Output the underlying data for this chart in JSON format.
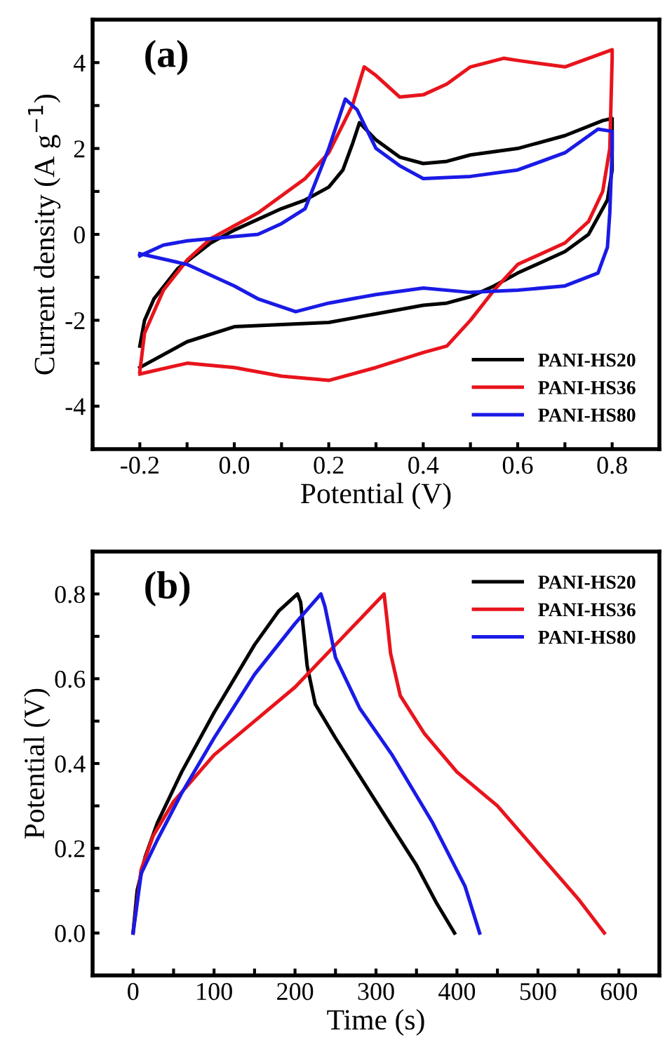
{
  "chart_data": [
    {
      "type": "line",
      "xlabel": "Potential (V)",
      "ylabel": "Current density (A g$^{−1}$)",
      "annotations": [
        "(a)"
      ],
      "xlim": [
        -0.3,
        0.9
      ],
      "ylim": [
        -5,
        5
      ],
      "xticks": [
        -0.2,
        {
          "value": 0,
          "label": "0.0"
        },
        0.2,
        0.4,
        0.6,
        0.8,
        {
          "value": -0.1,
          "label": null
        },
        {
          "value": 0.1,
          "label": null
        },
        {
          "value": 0.3,
          "label": null
        },
        {
          "value": 0.5,
          "label": null
        },
        {
          "value": 0.7,
          "label": null
        }
      ],
      "yticks": [
        -4,
        -2,
        0,
        2,
        4,
        {
          "value": -3,
          "label": null
        },
        {
          "value": -1,
          "label": null
        },
        {
          "value": 1,
          "label": null
        },
        {
          "value": 3,
          "label": null
        }
      ],
      "legend": "bottom right",
      "grid": false,
      "line_style": "solid",
      "marker": "none",
      "series": [
        {
          "name": "PANI-HS20",
          "color": "#000000",
          "x": [
            -0.2,
            -0.19,
            -0.17,
            -0.12,
            -0.05,
            0.0,
            0.1,
            0.15,
            0.2,
            0.23,
            0.25,
            0.265,
            0.3,
            0.35,
            0.4,
            0.45,
            0.5,
            0.6,
            0.7,
            0.78,
            0.8,
            0.8,
            0.8,
            0.79,
            0.75,
            0.7,
            0.6,
            0.55,
            0.5,
            0.45,
            0.4,
            0.3,
            0.2,
            0.1,
            0.0,
            -0.1,
            -0.2
          ],
          "values": [
            -2.6,
            -2.0,
            -1.5,
            -0.8,
            -0.2,
            0.1,
            0.6,
            0.8,
            1.1,
            1.5,
            2.1,
            2.6,
            2.2,
            1.8,
            1.65,
            1.7,
            1.85,
            2.0,
            2.3,
            2.65,
            2.7,
            2.6,
            1.5,
            0.8,
            0.0,
            -0.4,
            -0.9,
            -1.2,
            -1.45,
            -1.6,
            -1.65,
            -1.85,
            -2.05,
            -2.1,
            -2.15,
            -2.5,
            -3.1
          ]
        },
        {
          "name": "PANI-HS36",
          "color": "#e8141c",
          "x": [
            -0.2,
            -0.19,
            -0.15,
            -0.1,
            -0.05,
            0.0,
            0.05,
            0.1,
            0.15,
            0.2,
            0.25,
            0.275,
            0.3,
            0.35,
            0.4,
            0.45,
            0.5,
            0.57,
            0.6,
            0.7,
            0.75,
            0.8,
            0.8,
            0.795,
            0.78,
            0.75,
            0.7,
            0.6,
            0.55,
            0.5,
            0.45,
            0.4,
            0.3,
            0.2,
            0.1,
            0.0,
            -0.1,
            -0.2
          ],
          "values": [
            -3.2,
            -2.3,
            -1.3,
            -0.6,
            -0.1,
            0.2,
            0.5,
            0.9,
            1.3,
            1.9,
            3.0,
            3.9,
            3.7,
            3.2,
            3.25,
            3.5,
            3.9,
            4.1,
            4.05,
            3.9,
            4.1,
            4.3,
            4.1,
            2.0,
            1.0,
            0.3,
            -0.2,
            -0.7,
            -1.3,
            -2.0,
            -2.6,
            -2.75,
            -3.1,
            -3.4,
            -3.3,
            -3.1,
            -3.0,
            -3.25
          ]
        },
        {
          "name": "PANI-HS80",
          "color": "#1a1ae6",
          "x": [
            -0.2,
            -0.15,
            -0.1,
            0.0,
            0.05,
            0.1,
            0.15,
            0.2,
            0.235,
            0.26,
            0.3,
            0.35,
            0.4,
            0.5,
            0.6,
            0.7,
            0.77,
            0.8,
            0.8,
            0.795,
            0.79,
            0.77,
            0.7,
            0.6,
            0.5,
            0.4,
            0.3,
            0.2,
            0.13,
            0.05,
            0.0,
            -0.1,
            -0.2
          ],
          "values": [
            -0.5,
            -0.25,
            -0.15,
            -0.05,
            0.0,
            0.25,
            0.6,
            2.0,
            3.15,
            2.9,
            2.0,
            1.6,
            1.3,
            1.35,
            1.5,
            1.9,
            2.45,
            2.4,
            2.0,
            0.5,
            -0.3,
            -0.9,
            -1.2,
            -1.3,
            -1.35,
            -1.25,
            -1.4,
            -1.6,
            -1.8,
            -1.5,
            -1.2,
            -0.7,
            -0.45
          ]
        }
      ]
    },
    {
      "type": "line",
      "xlabel": "Time (s)",
      "ylabel": "Potential (V)",
      "annotations": [
        "(b)"
      ],
      "xlim": [
        -50,
        650
      ],
      "ylim": [
        -0.1,
        0.9
      ],
      "xticks": [
        0,
        100,
        200,
        300,
        400,
        500,
        600,
        {
          "value": 50,
          "label": null
        },
        {
          "value": 150,
          "label": null
        },
        {
          "value": 250,
          "label": null
        },
        {
          "value": 350,
          "label": null
        },
        {
          "value": 450,
          "label": null
        },
        {
          "value": 550,
          "label": null
        }
      ],
      "yticks": [
        {
          "value": 0.0,
          "label": "0.0"
        },
        0.2,
        0.4,
        0.6,
        0.8,
        {
          "value": 0.1,
          "label": null
        },
        {
          "value": 0.3,
          "label": null
        },
        {
          "value": 0.5,
          "label": null
        },
        {
          "value": 0.7,
          "label": null
        }
      ],
      "legend": "top right",
      "grid": false,
      "line_style": "solid",
      "marker": "none",
      "series": [
        {
          "name": "PANI-HS20",
          "color": "#000000",
          "x": [
            0,
            5,
            15,
            30,
            60,
            100,
            150,
            180,
            203,
            207,
            215,
            225,
            250,
            300,
            350,
            375,
            397
          ],
          "values": [
            0,
            0.1,
            0.18,
            0.26,
            0.38,
            0.52,
            0.68,
            0.76,
            0.8,
            0.78,
            0.63,
            0.54,
            0.46,
            0.31,
            0.16,
            0.07,
            0
          ]
        },
        {
          "name": "PANI-HS36",
          "color": "#e8141c",
          "x": [
            0,
            10,
            25,
            50,
            100,
            150,
            200,
            250,
            300,
            310,
            313,
            318,
            330,
            360,
            400,
            450,
            500,
            550,
            582
          ],
          "values": [
            0,
            0.15,
            0.23,
            0.31,
            0.42,
            0.5,
            0.58,
            0.68,
            0.78,
            0.8,
            0.75,
            0.66,
            0.56,
            0.47,
            0.38,
            0.3,
            0.19,
            0.08,
            0
          ]
        },
        {
          "name": "PANI-HS80",
          "color": "#1a1ae6",
          "x": [
            0,
            10,
            30,
            60,
            100,
            150,
            200,
            232,
            237,
            250,
            280,
            320,
            370,
            410,
            428
          ],
          "values": [
            0,
            0.14,
            0.22,
            0.33,
            0.46,
            0.61,
            0.73,
            0.8,
            0.77,
            0.65,
            0.53,
            0.42,
            0.26,
            0.11,
            0
          ]
        }
      ]
    }
  ]
}
